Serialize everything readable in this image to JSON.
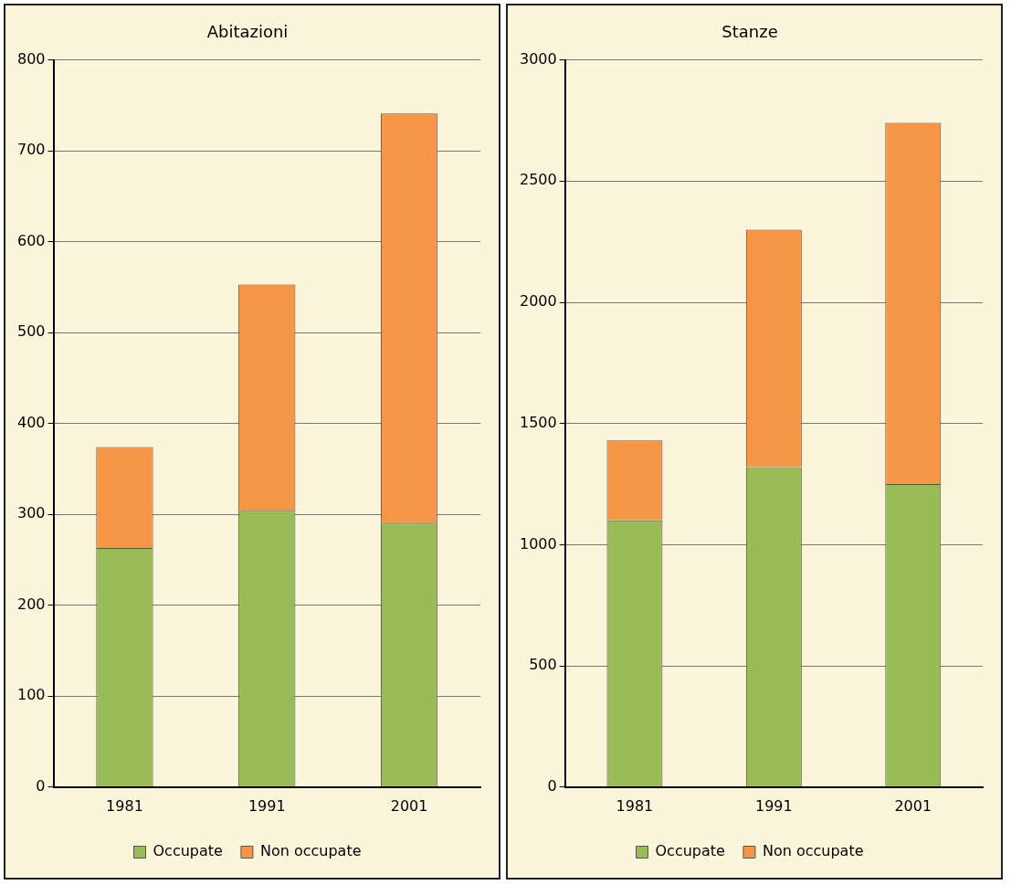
{
  "chart_data": [
    {
      "type": "bar",
      "title": "Abitazioni",
      "categories": [
        "1981",
        "1991",
        "2001"
      ],
      "stacked": true,
      "ylim": [
        0,
        800
      ],
      "yticks": [
        0,
        100,
        200,
        300,
        400,
        500,
        600,
        700,
        800
      ],
      "grid": "y",
      "legend": "bottom",
      "series": [
        {
          "name": "Occupate",
          "color": "#9bbb59",
          "values": [
            263,
            304,
            290
          ]
        },
        {
          "name": "Non occupate",
          "color": "#f79646",
          "values": [
            111,
            249,
            451
          ]
        }
      ]
    },
    {
      "type": "bar",
      "title": "Stanze",
      "categories": [
        "1981",
        "1991",
        "2001"
      ],
      "stacked": true,
      "ylim": [
        0,
        3000
      ],
      "yticks": [
        0,
        500,
        1000,
        1500,
        2000,
        2500,
        3000
      ],
      "grid": "y",
      "legend": "bottom",
      "series": [
        {
          "name": "Occupate",
          "color": "#9bbb59",
          "values": [
            1100,
            1320,
            1250
          ]
        },
        {
          "name": "Non occupate",
          "color": "#f79646",
          "values": [
            330,
            980,
            1490
          ]
        }
      ]
    }
  ]
}
